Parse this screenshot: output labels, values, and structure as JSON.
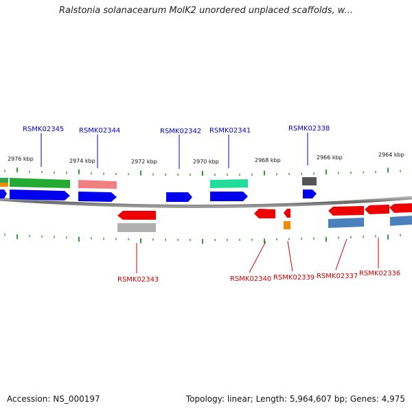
{
  "title": "Ralstonia solanacearum MolK2 unordered unplaced scaffolds, w...",
  "footer": {
    "accession": "Accession: NS_000197",
    "summary": "Topology: linear; Length: 5,964,607 bp; Genes: 4,975"
  },
  "colors": {
    "forward_label": "#0000cc",
    "reverse_label": "#cc0000",
    "backbone": "#808080",
    "tick": "#008000"
  },
  "scale_labels": [
    "2976 kbp",
    "2974 kbp",
    "2972 kbp",
    "2970 kbp",
    "2968 kbp",
    "2966 kbp",
    "2964 kbp"
  ],
  "forward_labels": [
    "RSMK02345",
    "RSMK02344",
    "RSMK02342",
    "RSMK02341",
    "RSMK02338"
  ],
  "reverse_labels": [
    "RSMK02343",
    "RSMK02340",
    "RSMK02339",
    "RSMK02337",
    "RSMK02336"
  ]
}
